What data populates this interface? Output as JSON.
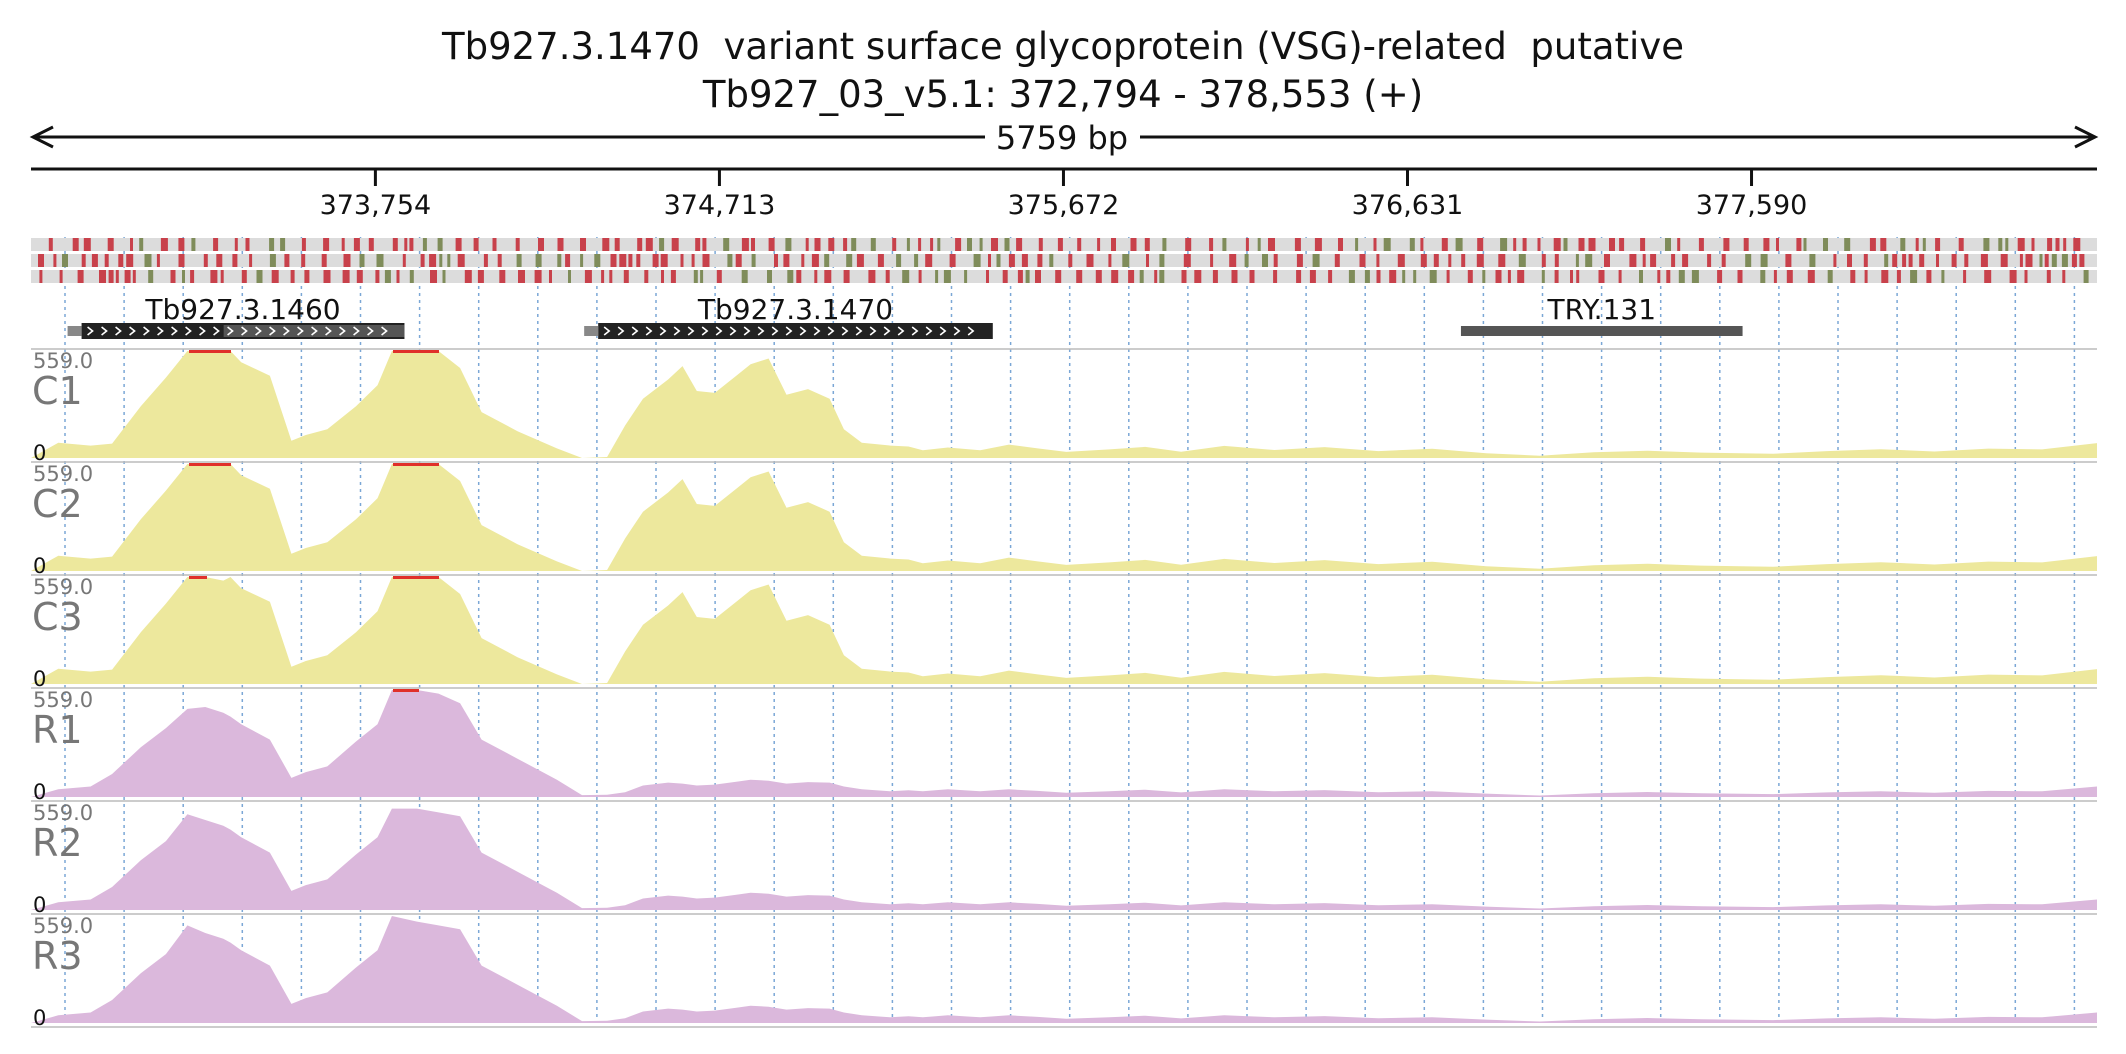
{
  "title": "Tb927.3.1470  variant surface glycoprotein (VSG)-related  putative",
  "subtitle": "Tb927_03_v5.1: 372,794 - 378,553 (+)",
  "span_label": "5759 bp",
  "colors": {
    "coverage_C": "#ede89d",
    "coverage_R": "#dbb8dc",
    "gene_dark": "#222222",
    "gene_gray": "#555555",
    "snp_red": "#c8414b",
    "snp_green": "#7f8c5a",
    "overflow": "#e0302a",
    "grid": "#7ba7d6"
  },
  "chart_data": {
    "type": "area",
    "chromosome": "Tb927_03_v5.1",
    "xlim": [
      372794,
      378553
    ],
    "x_ticks": [
      373754,
      374713,
      375672,
      376631,
      377590
    ],
    "x_tick_labels": [
      "373,754",
      "374,713",
      "375,672",
      "376,631",
      "377,590"
    ],
    "ylim": [
      0,
      559.0
    ],
    "y_tick_labels": [
      "559.0",
      "0"
    ],
    "genes": [
      {
        "name": "Tb927.3.1460",
        "start": 372935,
        "end": 373835,
        "strand": "+"
      },
      {
        "name": "Tb927.3.1470",
        "start": 374375,
        "end": 375475,
        "strand": "+"
      },
      {
        "name": "TRY.131",
        "start": 376780,
        "end": 377565,
        "strand": ""
      }
    ],
    "x": [
      372794,
      372870,
      372960,
      373020,
      373100,
      373170,
      373230,
      373280,
      373330,
      373350,
      373380,
      373460,
      373520,
      373560,
      373620,
      373700,
      373760,
      373800,
      373870,
      373930,
      373990,
      374050,
      374150,
      374260,
      374330,
      374400,
      374450,
      374500,
      374570,
      374610,
      374650,
      374700,
      374760,
      374800,
      374850,
      374900,
      374960,
      375020,
      375060,
      375110,
      375190,
      375240,
      375280,
      375350,
      375440,
      375520,
      375600,
      375680,
      375800,
      375900,
      376000,
      376120,
      376260,
      376400,
      376550,
      376700,
      376850,
      377000,
      377150,
      377300,
      377450,
      377650,
      377800,
      377950,
      378100,
      378250,
      378400,
      378553
    ],
    "series": [
      {
        "name": "C1",
        "values": [
          0,
          80,
          65,
          75,
          270,
          420,
          559,
          559,
          559,
          559,
          500,
          430,
          90,
          120,
          150,
          270,
          380,
          559,
          559,
          559,
          470,
          240,
          140,
          50,
          0,
          5,
          170,
          310,
          410,
          480,
          350,
          340,
          430,
          490,
          520,
          330,
          360,
          310,
          150,
          80,
          65,
          60,
          40,
          55,
          40,
          70,
          50,
          32,
          45,
          58,
          33,
          63,
          42,
          57,
          36,
          48,
          25,
          12,
          30,
          38,
          28,
          22,
          36,
          46,
          34,
          49,
          45,
          78
        ]
      },
      {
        "name": "C2",
        "values": [
          0,
          80,
          65,
          75,
          270,
          420,
          559,
          559,
          559,
          559,
          500,
          430,
          90,
          120,
          150,
          270,
          380,
          559,
          559,
          559,
          470,
          240,
          140,
          50,
          0,
          5,
          170,
          310,
          410,
          480,
          350,
          340,
          430,
          490,
          520,
          330,
          360,
          310,
          150,
          80,
          65,
          60,
          40,
          55,
          40,
          70,
          50,
          32,
          45,
          58,
          33,
          63,
          42,
          57,
          36,
          48,
          25,
          12,
          30,
          38,
          28,
          22,
          36,
          46,
          34,
          49,
          45,
          78
        ]
      },
      {
        "name": "C3",
        "values": [
          0,
          80,
          65,
          75,
          270,
          420,
          559,
          559,
          540,
          559,
          500,
          430,
          90,
          120,
          150,
          270,
          380,
          559,
          559,
          559,
          470,
          240,
          140,
          50,
          0,
          5,
          170,
          310,
          410,
          480,
          350,
          340,
          430,
          490,
          520,
          330,
          360,
          310,
          150,
          80,
          65,
          60,
          40,
          55,
          40,
          70,
          50,
          32,
          45,
          58,
          33,
          63,
          42,
          57,
          36,
          48,
          25,
          12,
          30,
          38,
          28,
          22,
          36,
          46,
          34,
          49,
          45,
          78
        ]
      },
      {
        "name": "R1",
        "values": [
          0,
          40,
          55,
          120,
          260,
          360,
          460,
          470,
          440,
          420,
          380,
          300,
          100,
          130,
          160,
          290,
          380,
          559,
          559,
          540,
          490,
          300,
          200,
          90,
          10,
          12,
          25,
          60,
          75,
          70,
          60,
          65,
          80,
          90,
          85,
          70,
          78,
          75,
          55,
          40,
          30,
          35,
          30,
          40,
          30,
          40,
          32,
          22,
          30,
          38,
          24,
          40,
          30,
          36,
          25,
          30,
          18,
          8,
          20,
          26,
          20,
          15,
          24,
          30,
          22,
          32,
          30,
          55
        ]
      },
      {
        "name": "R2",
        "values": [
          0,
          40,
          55,
          120,
          260,
          360,
          500,
          470,
          440,
          420,
          380,
          300,
          100,
          130,
          160,
          290,
          380,
          530,
          530,
          510,
          490,
          300,
          200,
          90,
          10,
          12,
          25,
          60,
          75,
          70,
          60,
          65,
          80,
          90,
          85,
          70,
          78,
          75,
          55,
          40,
          30,
          35,
          30,
          40,
          30,
          40,
          32,
          22,
          30,
          38,
          24,
          40,
          30,
          36,
          25,
          30,
          18,
          8,
          20,
          26,
          20,
          15,
          24,
          30,
          22,
          32,
          30,
          55
        ]
      },
      {
        "name": "R3",
        "values": [
          0,
          40,
          55,
          120,
          260,
          360,
          510,
          470,
          440,
          420,
          380,
          300,
          100,
          130,
          160,
          290,
          380,
          559,
          530,
          510,
          490,
          300,
          200,
          90,
          10,
          12,
          25,
          60,
          75,
          70,
          60,
          65,
          80,
          90,
          85,
          70,
          78,
          75,
          55,
          40,
          30,
          35,
          30,
          40,
          30,
          40,
          32,
          22,
          30,
          38,
          24,
          40,
          30,
          36,
          25,
          30,
          18,
          8,
          20,
          26,
          20,
          15,
          24,
          30,
          22,
          32,
          30,
          55
        ]
      }
    ]
  }
}
